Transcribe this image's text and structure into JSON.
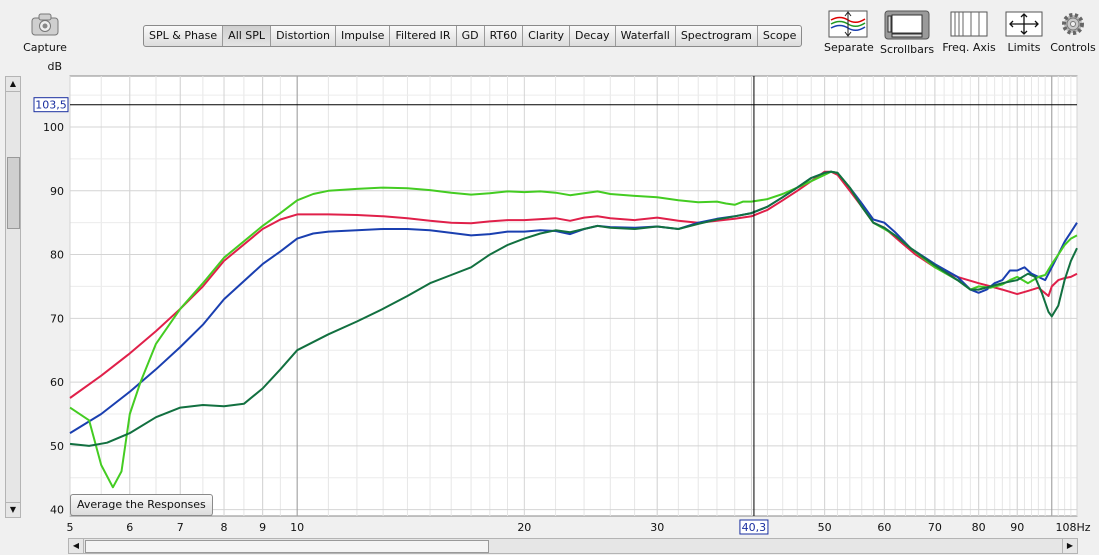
{
  "toolbar": {
    "capture": "Capture",
    "tabs": [
      "SPL & Phase",
      "All SPL",
      "Distortion",
      "Impulse",
      "Filtered IR",
      "GD",
      "RT60",
      "Clarity",
      "Decay",
      "Waterfall",
      "Spectrogram",
      "Scope"
    ],
    "active_tab": "All SPL",
    "right": [
      "Separate",
      "Scrollbars",
      "Freq. Axis",
      "Limits",
      "Controls"
    ]
  },
  "average_button": "Average the Responses",
  "chart_data": {
    "type": "line",
    "ylabel": "dB",
    "xlabel": "Hz",
    "x_scale": "log",
    "xlim": [
      5,
      108
    ],
    "ylim": [
      39,
      108
    ],
    "x_ticks": [
      "5",
      "6",
      "7",
      "8",
      "9",
      "10",
      "20",
      "30",
      "40",
      "50",
      "60",
      "70",
      "80",
      "90",
      "108Hz"
    ],
    "y_ticks": [
      "40",
      "50",
      "60",
      "70",
      "80",
      "90",
      "100"
    ],
    "cursor": {
      "x": "40,3",
      "y": "103,5"
    },
    "series": [
      {
        "color": "#e0204a",
        "points": [
          [
            5,
            57.5
          ],
          [
            5.5,
            61
          ],
          [
            6,
            64.5
          ],
          [
            6.5,
            68
          ],
          [
            7,
            71.5
          ],
          [
            7.5,
            75
          ],
          [
            8,
            79
          ],
          [
            9,
            84
          ],
          [
            9.5,
            85.5
          ],
          [
            10,
            86.3
          ],
          [
            11,
            86.3
          ],
          [
            12,
            86.2
          ],
          [
            13,
            86
          ],
          [
            14,
            85.7
          ],
          [
            15,
            85.3
          ],
          [
            16,
            85
          ],
          [
            17,
            84.9
          ],
          [
            18,
            85.2
          ],
          [
            19,
            85.4
          ],
          [
            20,
            85.4
          ],
          [
            22,
            85.7
          ],
          [
            23,
            85.3
          ],
          [
            24,
            85.8
          ],
          [
            25,
            86
          ],
          [
            26,
            85.7
          ],
          [
            28,
            85.4
          ],
          [
            30,
            85.8
          ],
          [
            32,
            85.3
          ],
          [
            34,
            85
          ],
          [
            36,
            85.3
          ],
          [
            38,
            85.6
          ],
          [
            40,
            86
          ],
          [
            42,
            87
          ],
          [
            44,
            88.5
          ],
          [
            46,
            90
          ],
          [
            48,
            91.5
          ],
          [
            50,
            93
          ],
          [
            51,
            93
          ],
          [
            52,
            92.5
          ],
          [
            54,
            90
          ],
          [
            56,
            87.5
          ],
          [
            58,
            85
          ],
          [
            60,
            84.2
          ],
          [
            63,
            82
          ],
          [
            66,
            80
          ],
          [
            70,
            78
          ],
          [
            75,
            76.5
          ],
          [
            80,
            75.5
          ],
          [
            83,
            75
          ],
          [
            86,
            74.5
          ],
          [
            90,
            73.8
          ],
          [
            93,
            74.3
          ],
          [
            96,
            74.8
          ],
          [
            99,
            73.5
          ],
          [
            100,
            75
          ],
          [
            102,
            76
          ],
          [
            104,
            76.3
          ],
          [
            106,
            76.5
          ],
          [
            108,
            77
          ]
        ]
      },
      {
        "color": "#1a3fb0",
        "points": [
          [
            5,
            52
          ],
          [
            5.5,
            55
          ],
          [
            6,
            58.5
          ],
          [
            6.5,
            62
          ],
          [
            7,
            65.5
          ],
          [
            7.5,
            69
          ],
          [
            8,
            73
          ],
          [
            9,
            78.5
          ],
          [
            9.5,
            80.5
          ],
          [
            10,
            82.5
          ],
          [
            10.5,
            83.3
          ],
          [
            11,
            83.6
          ],
          [
            12,
            83.8
          ],
          [
            13,
            84
          ],
          [
            14,
            84
          ],
          [
            15,
            83.8
          ],
          [
            16,
            83.4
          ],
          [
            17,
            83
          ],
          [
            18,
            83.2
          ],
          [
            19,
            83.6
          ],
          [
            20,
            83.6
          ],
          [
            21,
            83.8
          ],
          [
            22,
            83.7
          ],
          [
            23,
            83.2
          ],
          [
            24,
            84
          ],
          [
            25,
            84.5
          ],
          [
            26,
            84.3
          ],
          [
            28,
            84.2
          ],
          [
            30,
            84.4
          ],
          [
            32,
            84
          ],
          [
            34,
            85
          ],
          [
            36,
            85.6
          ],
          [
            38,
            86
          ],
          [
            40,
            86.5
          ],
          [
            42,
            87.5
          ],
          [
            44,
            89
          ],
          [
            46,
            90.5
          ],
          [
            48,
            92
          ],
          [
            50,
            92.8
          ],
          [
            51,
            93
          ],
          [
            52,
            92.8
          ],
          [
            54,
            90.5
          ],
          [
            56,
            88
          ],
          [
            58,
            85.5
          ],
          [
            60,
            85
          ],
          [
            62,
            83.5
          ],
          [
            65,
            81
          ],
          [
            70,
            78.5
          ],
          [
            75,
            76.5
          ],
          [
            78,
            74.5
          ],
          [
            80,
            74
          ],
          [
            82,
            74.5
          ],
          [
            84,
            75.5
          ],
          [
            86,
            76
          ],
          [
            88,
            77.5
          ],
          [
            90,
            77.5
          ],
          [
            92,
            78
          ],
          [
            94,
            77
          ],
          [
            96,
            76.5
          ],
          [
            98,
            76
          ],
          [
            100,
            78
          ],
          [
            102,
            80
          ],
          [
            104,
            82
          ],
          [
            106,
            83.5
          ],
          [
            108,
            85
          ]
        ]
      },
      {
        "color": "#44cc22",
        "points": [
          [
            5,
            56
          ],
          [
            5.3,
            54
          ],
          [
            5.5,
            47
          ],
          [
            5.7,
            43.5
          ],
          [
            5.85,
            46
          ],
          [
            6,
            55
          ],
          [
            6.2,
            60
          ],
          [
            6.5,
            66
          ],
          [
            7,
            71.5
          ],
          [
            7.5,
            75.5
          ],
          [
            8,
            79.5
          ],
          [
            9,
            84.5
          ],
          [
            9.5,
            86.5
          ],
          [
            10,
            88.5
          ],
          [
            10.5,
            89.5
          ],
          [
            11,
            90
          ],
          [
            12,
            90.3
          ],
          [
            13,
            90.5
          ],
          [
            14,
            90.4
          ],
          [
            15,
            90.1
          ],
          [
            16,
            89.7
          ],
          [
            17,
            89.4
          ],
          [
            18,
            89.6
          ],
          [
            19,
            89.9
          ],
          [
            20,
            89.8
          ],
          [
            21,
            89.9
          ],
          [
            22,
            89.7
          ],
          [
            23,
            89.3
          ],
          [
            24,
            89.6
          ],
          [
            25,
            89.9
          ],
          [
            26,
            89.5
          ],
          [
            28,
            89.2
          ],
          [
            30,
            89
          ],
          [
            32,
            88.5
          ],
          [
            34,
            88.2
          ],
          [
            36,
            88.3
          ],
          [
            37,
            88
          ],
          [
            38,
            87.8
          ],
          [
            39,
            88.3
          ],
          [
            40,
            88.3
          ],
          [
            42,
            88.7
          ],
          [
            44,
            89.5
          ],
          [
            46,
            90.5
          ],
          [
            48,
            91.5
          ],
          [
            50,
            92.5
          ],
          [
            51,
            93
          ],
          [
            52,
            92.8
          ],
          [
            54,
            90.5
          ],
          [
            56,
            87.5
          ],
          [
            58,
            85
          ],
          [
            60,
            84
          ],
          [
            62,
            83
          ],
          [
            65,
            81
          ],
          [
            70,
            78
          ],
          [
            75,
            76
          ],
          [
            78,
            74.5
          ],
          [
            80,
            75
          ],
          [
            83,
            74.8
          ],
          [
            86,
            75.3
          ],
          [
            88,
            76
          ],
          [
            90,
            76.5
          ],
          [
            93,
            75.5
          ],
          [
            96,
            76.5
          ],
          [
            98,
            76.8
          ],
          [
            100,
            78.5
          ],
          [
            102,
            80
          ],
          [
            104,
            81.5
          ],
          [
            106,
            82.5
          ],
          [
            108,
            83
          ]
        ]
      },
      {
        "color": "#127040",
        "points": [
          [
            5,
            50.3
          ],
          [
            5.3,
            50
          ],
          [
            5.6,
            50.5
          ],
          [
            6,
            52
          ],
          [
            6.5,
            54.5
          ],
          [
            7,
            56
          ],
          [
            7.5,
            56.4
          ],
          [
            8,
            56.2
          ],
          [
            8.5,
            56.6
          ],
          [
            9,
            59
          ],
          [
            9.5,
            62
          ],
          [
            10,
            65
          ],
          [
            11,
            67.5
          ],
          [
            12,
            69.5
          ],
          [
            13,
            71.5
          ],
          [
            14,
            73.5
          ],
          [
            15,
            75.5
          ],
          [
            16,
            76.8
          ],
          [
            17,
            78
          ],
          [
            18,
            80
          ],
          [
            19,
            81.5
          ],
          [
            20,
            82.5
          ],
          [
            21,
            83.3
          ],
          [
            22,
            83.8
          ],
          [
            23,
            83.5
          ],
          [
            24,
            84
          ],
          [
            25,
            84.5
          ],
          [
            26,
            84.2
          ],
          [
            28,
            84
          ],
          [
            30,
            84.4
          ],
          [
            32,
            84
          ],
          [
            34,
            84.8
          ],
          [
            36,
            85.5
          ],
          [
            38,
            86
          ],
          [
            40,
            86.5
          ],
          [
            42,
            87.5
          ],
          [
            44,
            89
          ],
          [
            46,
            90.5
          ],
          [
            48,
            92
          ],
          [
            50,
            92.8
          ],
          [
            51,
            93
          ],
          [
            52,
            92.8
          ],
          [
            54,
            90.5
          ],
          [
            56,
            87.5
          ],
          [
            58,
            85
          ],
          [
            60,
            84.2
          ],
          [
            62,
            83
          ],
          [
            65,
            81
          ],
          [
            70,
            78.3
          ],
          [
            75,
            76
          ],
          [
            78,
            74.5
          ],
          [
            80,
            74.5
          ],
          [
            83,
            75
          ],
          [
            86,
            75.5
          ],
          [
            90,
            76
          ],
          [
            93,
            77
          ],
          [
            95,
            76.5
          ],
          [
            97,
            74
          ],
          [
            99,
            71
          ],
          [
            100,
            70.3
          ],
          [
            102,
            72
          ],
          [
            104,
            76
          ],
          [
            106,
            79
          ],
          [
            108,
            81
          ]
        ]
      }
    ]
  }
}
